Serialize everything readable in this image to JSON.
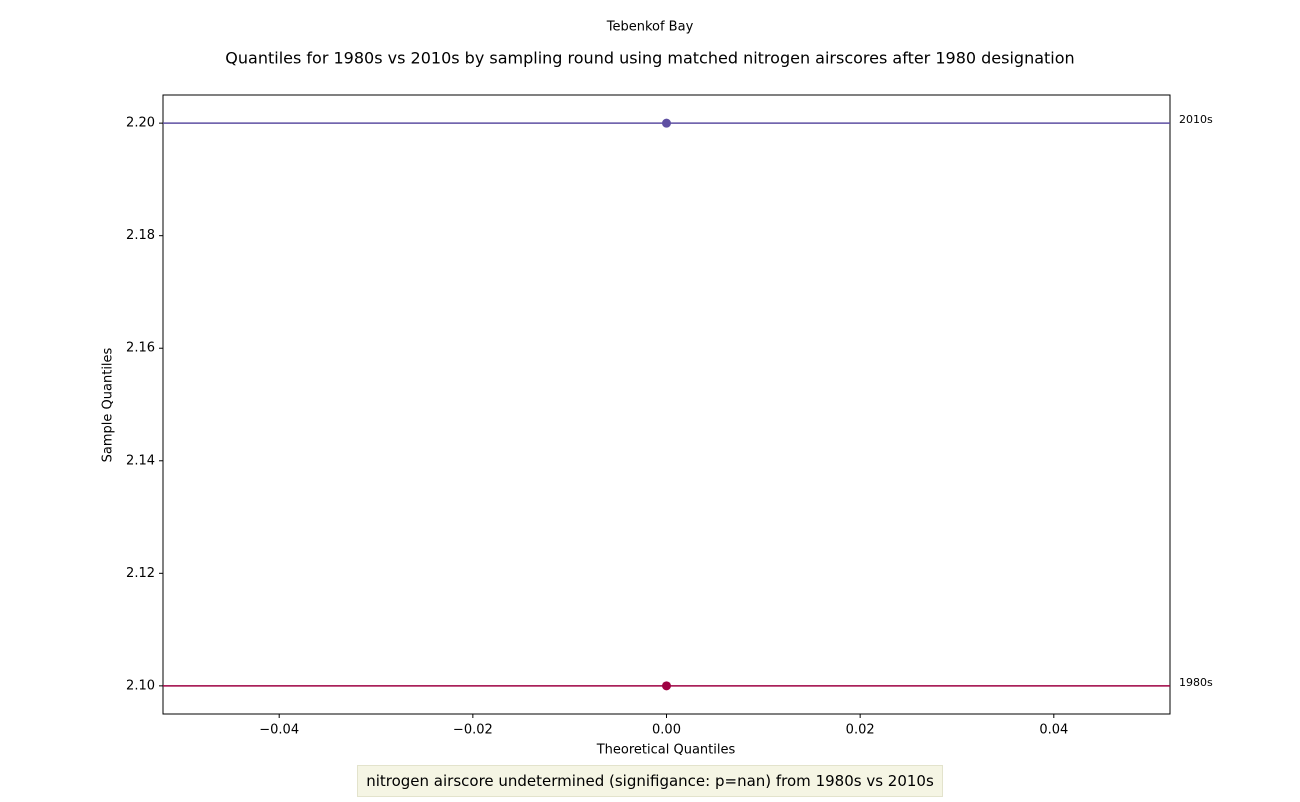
{
  "chart_data": {
    "type": "scatter",
    "suptitle": "Tebenkof Bay",
    "title": "Quantiles for 1980s vs 2010s by sampling round using matched nitrogen airscores after 1980 designation",
    "xlabel": "Theoretical Quantiles",
    "ylabel": "Sample Quantiles",
    "annotation": "nitrogen airscore undetermined (signifigance: p=nan) from 1980s vs 2010s",
    "x": [
      0
    ],
    "series": [
      {
        "name": "1980s",
        "color": "#9e0142",
        "values": [
          2.1
        ]
      },
      {
        "name": "2010s",
        "color": "#5e4fa2",
        "values": [
          2.2
        ]
      }
    ],
    "xlim": [
      -0.052,
      0.052
    ],
    "xticks": [
      {
        "value": -0.04,
        "label": "−0.04"
      },
      {
        "value": -0.02,
        "label": "−0.02"
      },
      {
        "value": 0,
        "label": "0.00"
      },
      {
        "value": 0.02,
        "label": "0.02"
      },
      {
        "value": 0.04,
        "label": "0.04"
      }
    ],
    "ylim": [
      2.095,
      2.205
    ],
    "yticks": [
      {
        "value": 2.1,
        "label": "2.10"
      },
      {
        "value": 2.12,
        "label": "2.12"
      },
      {
        "value": 2.14,
        "label": "2.14"
      },
      {
        "value": 2.16,
        "label": "2.16"
      },
      {
        "value": 2.18,
        "label": "2.18"
      },
      {
        "value": 2.2,
        "label": "2.20"
      }
    ],
    "grid": false
  }
}
